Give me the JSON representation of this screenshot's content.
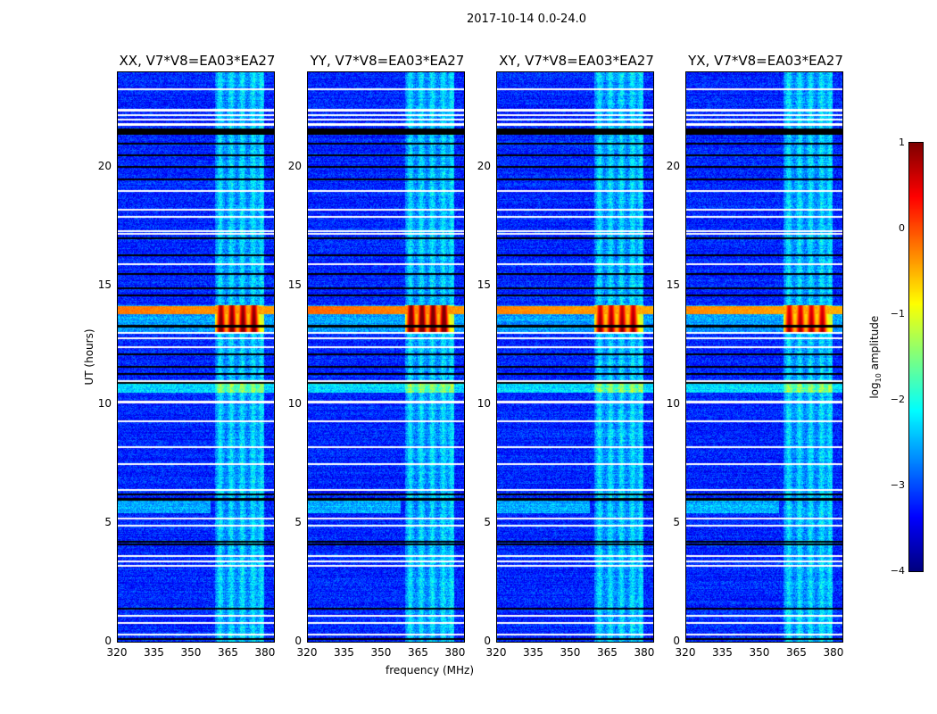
{
  "chart_data": {
    "type": "heatmap",
    "suptitle": "2017-10-14 0.0-24.0",
    "xlabel": "frequency (MHz)",
    "ylabel": "UT (hours)",
    "xlim": [
      320,
      384
    ],
    "ylim": [
      0,
      24
    ],
    "xticks": [
      "320",
      "335",
      "350",
      "365",
      "380"
    ],
    "xtick_values": [
      320,
      335,
      350,
      365,
      380
    ],
    "yticks": [
      "0",
      "5",
      "10",
      "15",
      "20"
    ],
    "ytick_values": [
      0,
      5,
      10,
      15,
      20
    ],
    "panels": [
      {
        "title": "XX, V7*V8=EA03*EA27",
        "rfi_strength": 1.0
      },
      {
        "title": "YY, V7*V8=EA03*EA27",
        "rfi_strength": 1.1
      },
      {
        "title": "XY, V7*V8=EA03*EA27",
        "rfi_strength": 0.9
      },
      {
        "title": "YX, V7*V8=EA03*EA27",
        "rfi_strength": 0.85
      }
    ],
    "colormap": "jet",
    "colorbar": {
      "label": "log10 amplitude",
      "label_main": "log",
      "label_sub": "10",
      "label_tail": " amplitude",
      "range": [
        -4,
        1
      ],
      "ticks": [
        "1",
        "0",
        "−1",
        "−2",
        "−3",
        "−4"
      ],
      "tick_values": [
        1,
        0,
        -1,
        -2,
        -3,
        -4
      ]
    },
    "background_level": -3.2,
    "bright_band_mhz": [
      360,
      380
    ],
    "bright_subband_centers_mhz": [
      362,
      366.5,
      371,
      375.5,
      379
    ],
    "rfi_event_hours": [
      13.0,
      14.2
    ],
    "broadband_rfi_hours": [
      13.8,
      14.15
    ],
    "flagged_rows_hours": [
      23.3,
      22.4,
      22.2,
      22.0,
      21.8,
      19.0,
      18.2,
      17.9,
      17.3,
      17.2,
      15.9,
      13.0,
      12.8,
      12.4,
      11.0,
      10.1,
      9.3,
      8.2,
      7.5,
      6.4,
      5.2,
      4.9,
      3.6,
      3.4,
      3.2,
      1.1,
      0.8,
      0.3
    ],
    "zero_rows_hours": [
      21.6,
      21.5,
      21.4,
      21.0,
      20.5,
      20.0,
      19.5,
      17.0,
      16.3,
      15.5,
      14.9,
      14.6,
      13.3,
      12.1,
      11.6,
      11.3,
      10.9,
      6.2,
      6.0,
      4.2,
      4.1,
      1.4,
      0.1
    ]
  }
}
